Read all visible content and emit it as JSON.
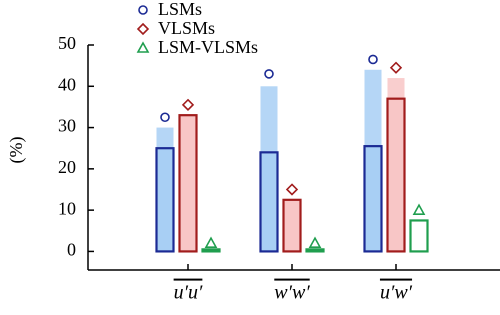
{
  "chart_data": {
    "type": "bar",
    "y_label": "(%)",
    "categories": [
      "u′u′",
      "w′w′",
      "u′w′"
    ],
    "series": [
      {
        "name": "LSMs",
        "color": "#1b2a94",
        "fill": "#a8cff4",
        "marker": "circle",
        "values": [
          25,
          24,
          25.5
        ],
        "shaded_values": [
          30,
          40,
          44
        ],
        "marker_values": [
          32.5,
          43,
          46.5
        ]
      },
      {
        "name": "VLSMs",
        "color": "#a11c1c",
        "fill": "#f8c6c6",
        "marker": "diamond",
        "values": [
          33,
          12.5,
          37
        ],
        "shaded_values": [
          null,
          null,
          42
        ],
        "marker_values": [
          35.5,
          15,
          44.5
        ]
      },
      {
        "name": "LSM-VLSMs",
        "color": "#1f9e4e",
        "fill": "#ffffff",
        "marker": "triangle",
        "values": [
          0.5,
          0.5,
          7.5
        ],
        "shaded_values": [
          null,
          null,
          null
        ],
        "marker_values": [
          2,
          2,
          10
        ]
      }
    ],
    "ylim": [
      -4.5,
      50
    ],
    "yticks": [
      0,
      10,
      20,
      30,
      40,
      50
    ],
    "legend": "top-left"
  }
}
